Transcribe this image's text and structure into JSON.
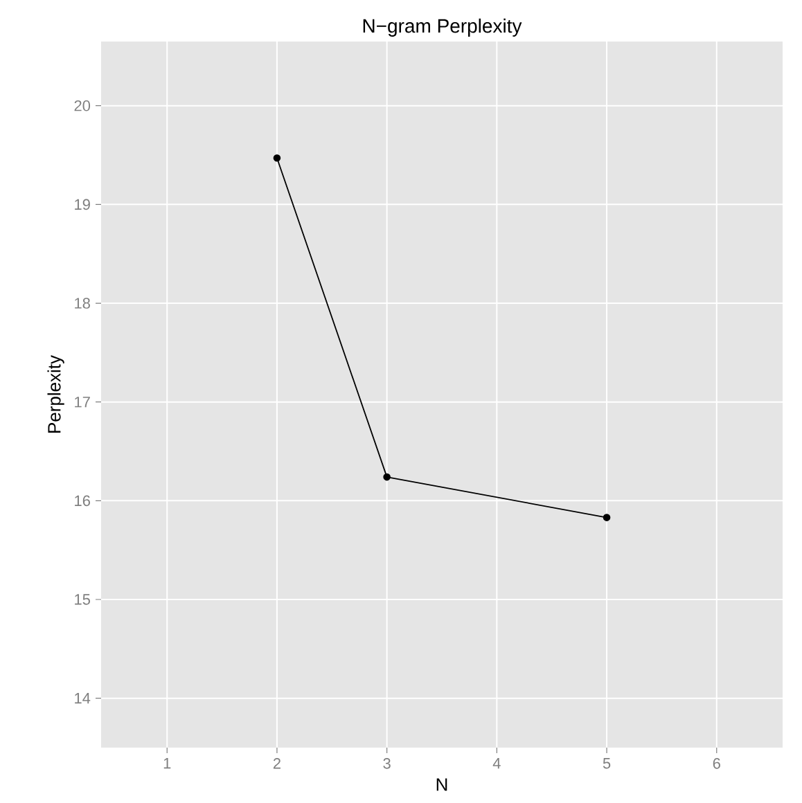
{
  "chart_data": {
    "type": "line",
    "title": "N−gram Perplexity",
    "xlabel": "N",
    "ylabel": "Perplexity",
    "x": [
      2,
      3,
      5
    ],
    "values": [
      19.47,
      16.24,
      15.83
    ],
    "color": "#000000",
    "marker": "circle",
    "xlim": [
      0.4,
      6.6
    ],
    "ylim": [
      13.5,
      20.65
    ],
    "xticks": [
      1,
      2,
      3,
      4,
      5,
      6
    ],
    "yticks": [
      14,
      15,
      16,
      17,
      18,
      19,
      20
    ],
    "grid": true
  }
}
